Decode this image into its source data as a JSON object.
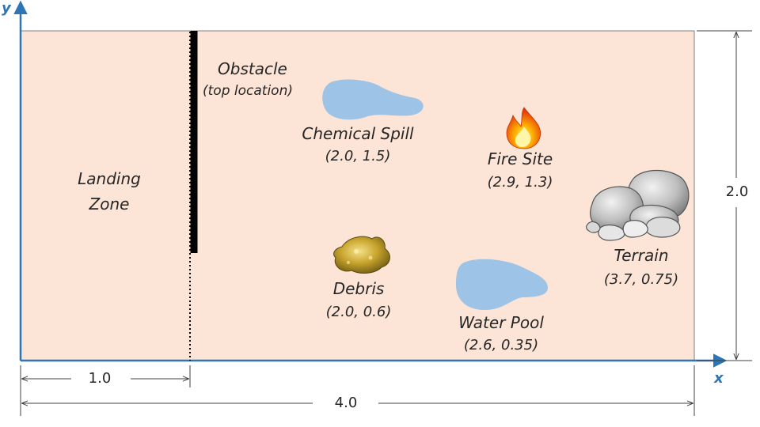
{
  "axes": {
    "x_label": "x",
    "y_label": "y"
  },
  "field": {
    "width_value": "4.0",
    "height_value": "2.0"
  },
  "obstacle": {
    "title": "Obstacle",
    "subtitle": "(top location)",
    "offset_value": "1.0"
  },
  "landing_zone": {
    "line1": "Landing",
    "line2": "Zone"
  },
  "features": [
    {
      "name": "Chemical Spill",
      "coords": "(2.0, 1.5)",
      "icon": "puddle-icon"
    },
    {
      "name": "Fire Site",
      "coords": "(2.9, 1.3)",
      "icon": "fire-icon"
    },
    {
      "name": "Terrain",
      "coords": "(3.7, 0.75)",
      "icon": "rocks-icon"
    },
    {
      "name": "Debris",
      "coords": "(2.0, 0.6)",
      "icon": "debris-icon"
    },
    {
      "name": "Water Pool",
      "coords": "(2.6, 0.35)",
      "icon": "puddle-icon"
    }
  ],
  "colors": {
    "field_fill": "#fce4d6",
    "axis_blue": "#2e75b6",
    "water_blue": "#9dc3e6",
    "obstacle": "#000000"
  }
}
